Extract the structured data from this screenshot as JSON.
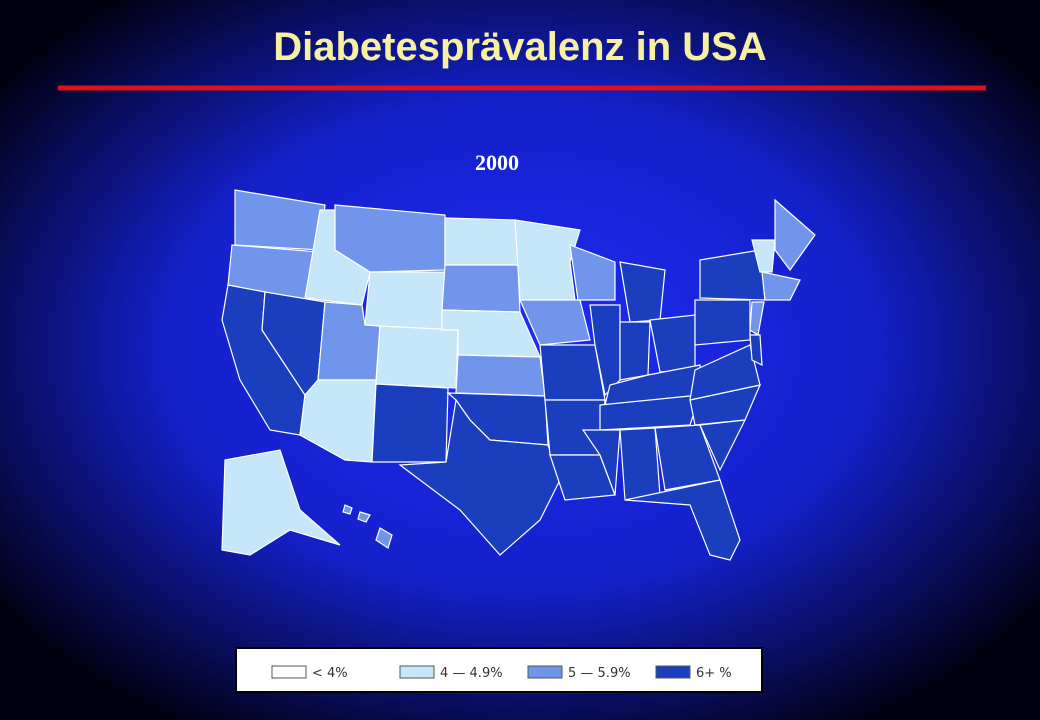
{
  "title": "Diabetesprävalenz in USA",
  "subtitle": "2000",
  "legend": [
    {
      "label": "< 4%",
      "color": "#ffffff"
    },
    {
      "label": "4 — 4.9%",
      "color": "#c6e6fa"
    },
    {
      "label": "5 — 5.9%",
      "color": "#7195ea"
    },
    {
      "label": "6+ %",
      "color": "#1a3ebd"
    }
  ]
}
